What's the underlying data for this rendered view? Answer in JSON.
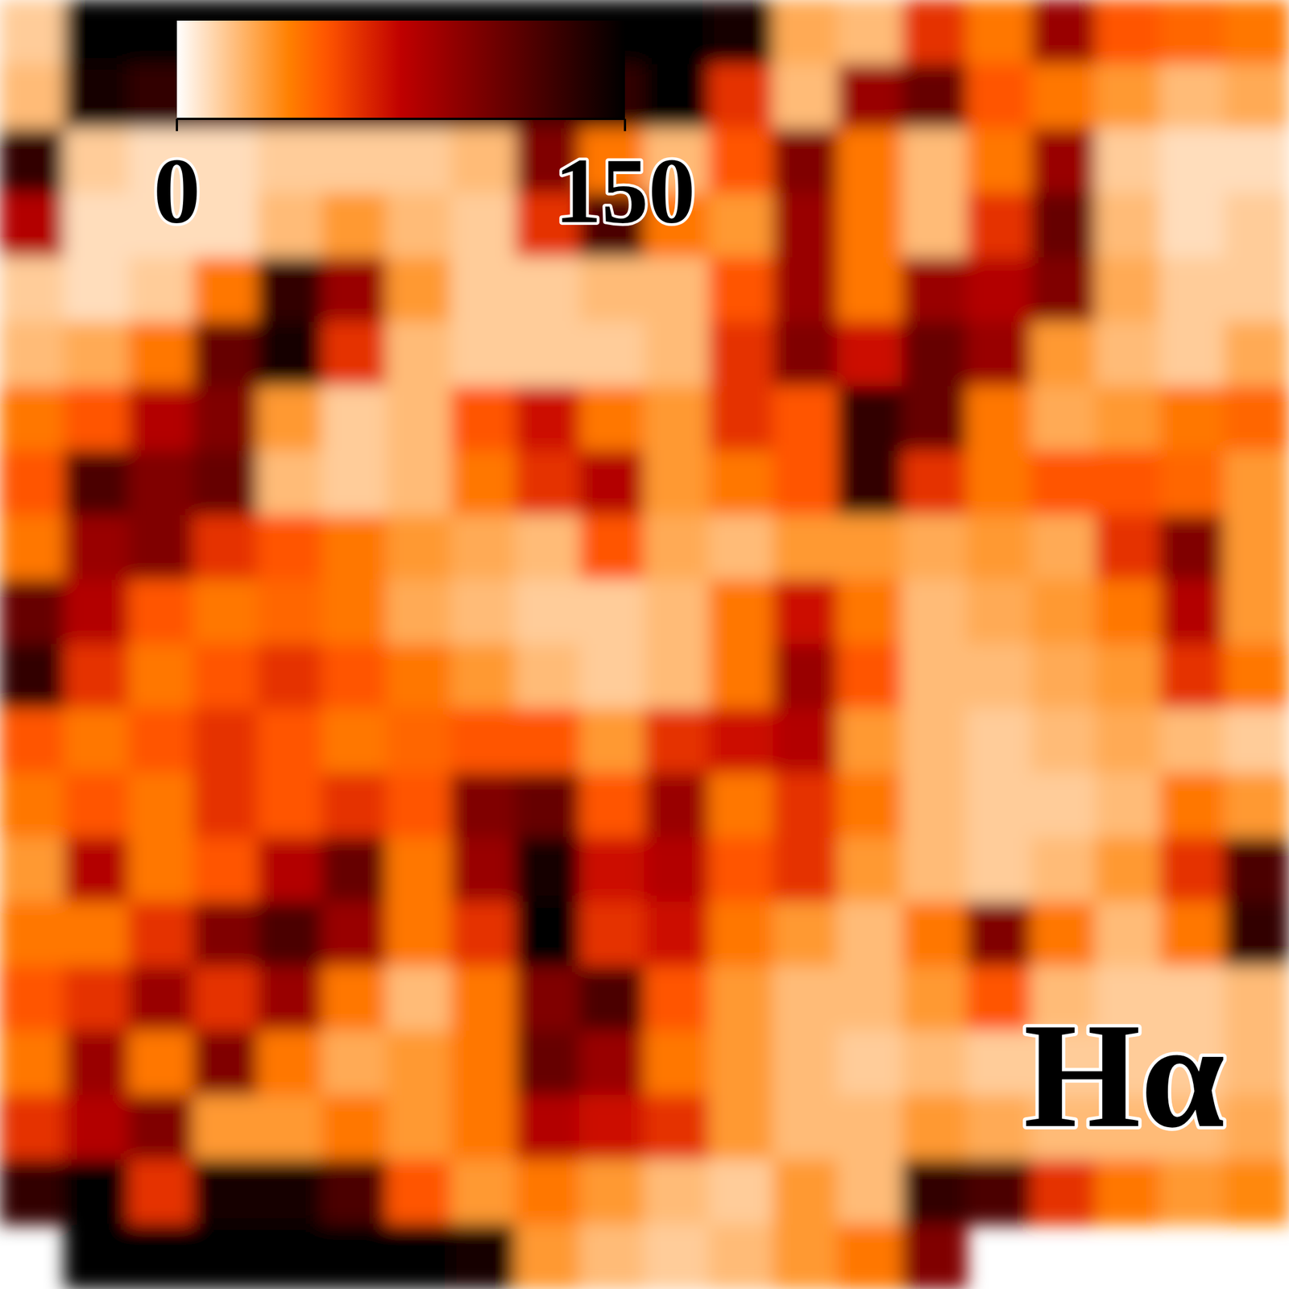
{
  "chart_data": {
    "type": "heatmap",
    "annotation": "Hα",
    "tick_labels": false,
    "colorbar": {
      "range": [
        0,
        150
      ],
      "ticks": [
        0,
        150
      ]
    },
    "values": [
      [
        15,
        150,
        150,
        150,
        150,
        150,
        150,
        150,
        150,
        150,
        150,
        140,
        25,
        20,
        60,
        40,
        90,
        50,
        45,
        40
      ],
      [
        20,
        140,
        130,
        120,
        120,
        120,
        120,
        120,
        120,
        130,
        150,
        60,
        20,
        90,
        110,
        50,
        40,
        30,
        20,
        25
      ],
      [
        130,
        15,
        10,
        10,
        15,
        15,
        15,
        20,
        100,
        40,
        20,
        50,
        100,
        40,
        20,
        40,
        90,
        15,
        10,
        10
      ],
      [
        80,
        10,
        10,
        10,
        20,
        30,
        20,
        15,
        60,
        120,
        40,
        30,
        90,
        40,
        20,
        60,
        110,
        20,
        10,
        15
      ],
      [
        15,
        10,
        15,
        40,
        130,
        90,
        30,
        15,
        15,
        20,
        20,
        50,
        90,
        40,
        90,
        80,
        100,
        25,
        15,
        15
      ],
      [
        20,
        25,
        40,
        110,
        140,
        60,
        20,
        15,
        15,
        15,
        20,
        60,
        100,
        70,
        110,
        90,
        30,
        20,
        15,
        25
      ],
      [
        40,
        50,
        80,
        100,
        30,
        15,
        20,
        50,
        70,
        40,
        30,
        60,
        50,
        130,
        110,
        40,
        25,
        30,
        40,
        45
      ],
      [
        50,
        120,
        100,
        110,
        20,
        15,
        20,
        40,
        60,
        80,
        30,
        40,
        50,
        130,
        60,
        40,
        50,
        50,
        45,
        30
      ],
      [
        40,
        90,
        100,
        60,
        50,
        40,
        30,
        25,
        20,
        50,
        25,
        20,
        30,
        30,
        25,
        30,
        25,
        60,
        100,
        30
      ],
      [
        110,
        80,
        50,
        40,
        45,
        40,
        25,
        20,
        15,
        15,
        20,
        40,
        70,
        40,
        20,
        25,
        30,
        40,
        80,
        30
      ],
      [
        130,
        60,
        40,
        50,
        60,
        50,
        40,
        30,
        20,
        15,
        20,
        40,
        90,
        50,
        20,
        20,
        25,
        30,
        60,
        40
      ],
      [
        50,
        40,
        50,
        60,
        50,
        40,
        45,
        50,
        50,
        30,
        60,
        70,
        80,
        30,
        20,
        15,
        20,
        25,
        20,
        15
      ],
      [
        40,
        50,
        40,
        60,
        50,
        60,
        50,
        100,
        110,
        50,
        90,
        40,
        60,
        40,
        20,
        15,
        15,
        20,
        40,
        30
      ],
      [
        30,
        80,
        40,
        50,
        80,
        110,
        40,
        90,
        140,
        70,
        80,
        50,
        60,
        30,
        20,
        15,
        20,
        30,
        60,
        120
      ],
      [
        40,
        40,
        60,
        100,
        120,
        90,
        40,
        60,
        150,
        60,
        70,
        40,
        30,
        20,
        40,
        100,
        40,
        20,
        40,
        130
      ],
      [
        50,
        60,
        90,
        60,
        90,
        40,
        20,
        40,
        100,
        120,
        50,
        30,
        20,
        20,
        30,
        50,
        20,
        15,
        15,
        20
      ],
      [
        40,
        90,
        40,
        100,
        40,
        25,
        30,
        40,
        110,
        90,
        40,
        30,
        20,
        15,
        20,
        15,
        15,
        15,
        15,
        20
      ],
      [
        60,
        80,
        100,
        30,
        30,
        40,
        30,
        40,
        80,
        70,
        60,
        30,
        20,
        20,
        30,
        25,
        20,
        20,
        20,
        25
      ],
      [
        130,
        150,
        60,
        140,
        140,
        120,
        50,
        30,
        40,
        30,
        20,
        15,
        30,
        20,
        130,
        120,
        60,
        40,
        30,
        35
      ],
      [
        null,
        150,
        150,
        150,
        150,
        150,
        150,
        140,
        30,
        20,
        15,
        20,
        30,
        40,
        100,
        null,
        null,
        null,
        null,
        null
      ]
    ]
  }
}
